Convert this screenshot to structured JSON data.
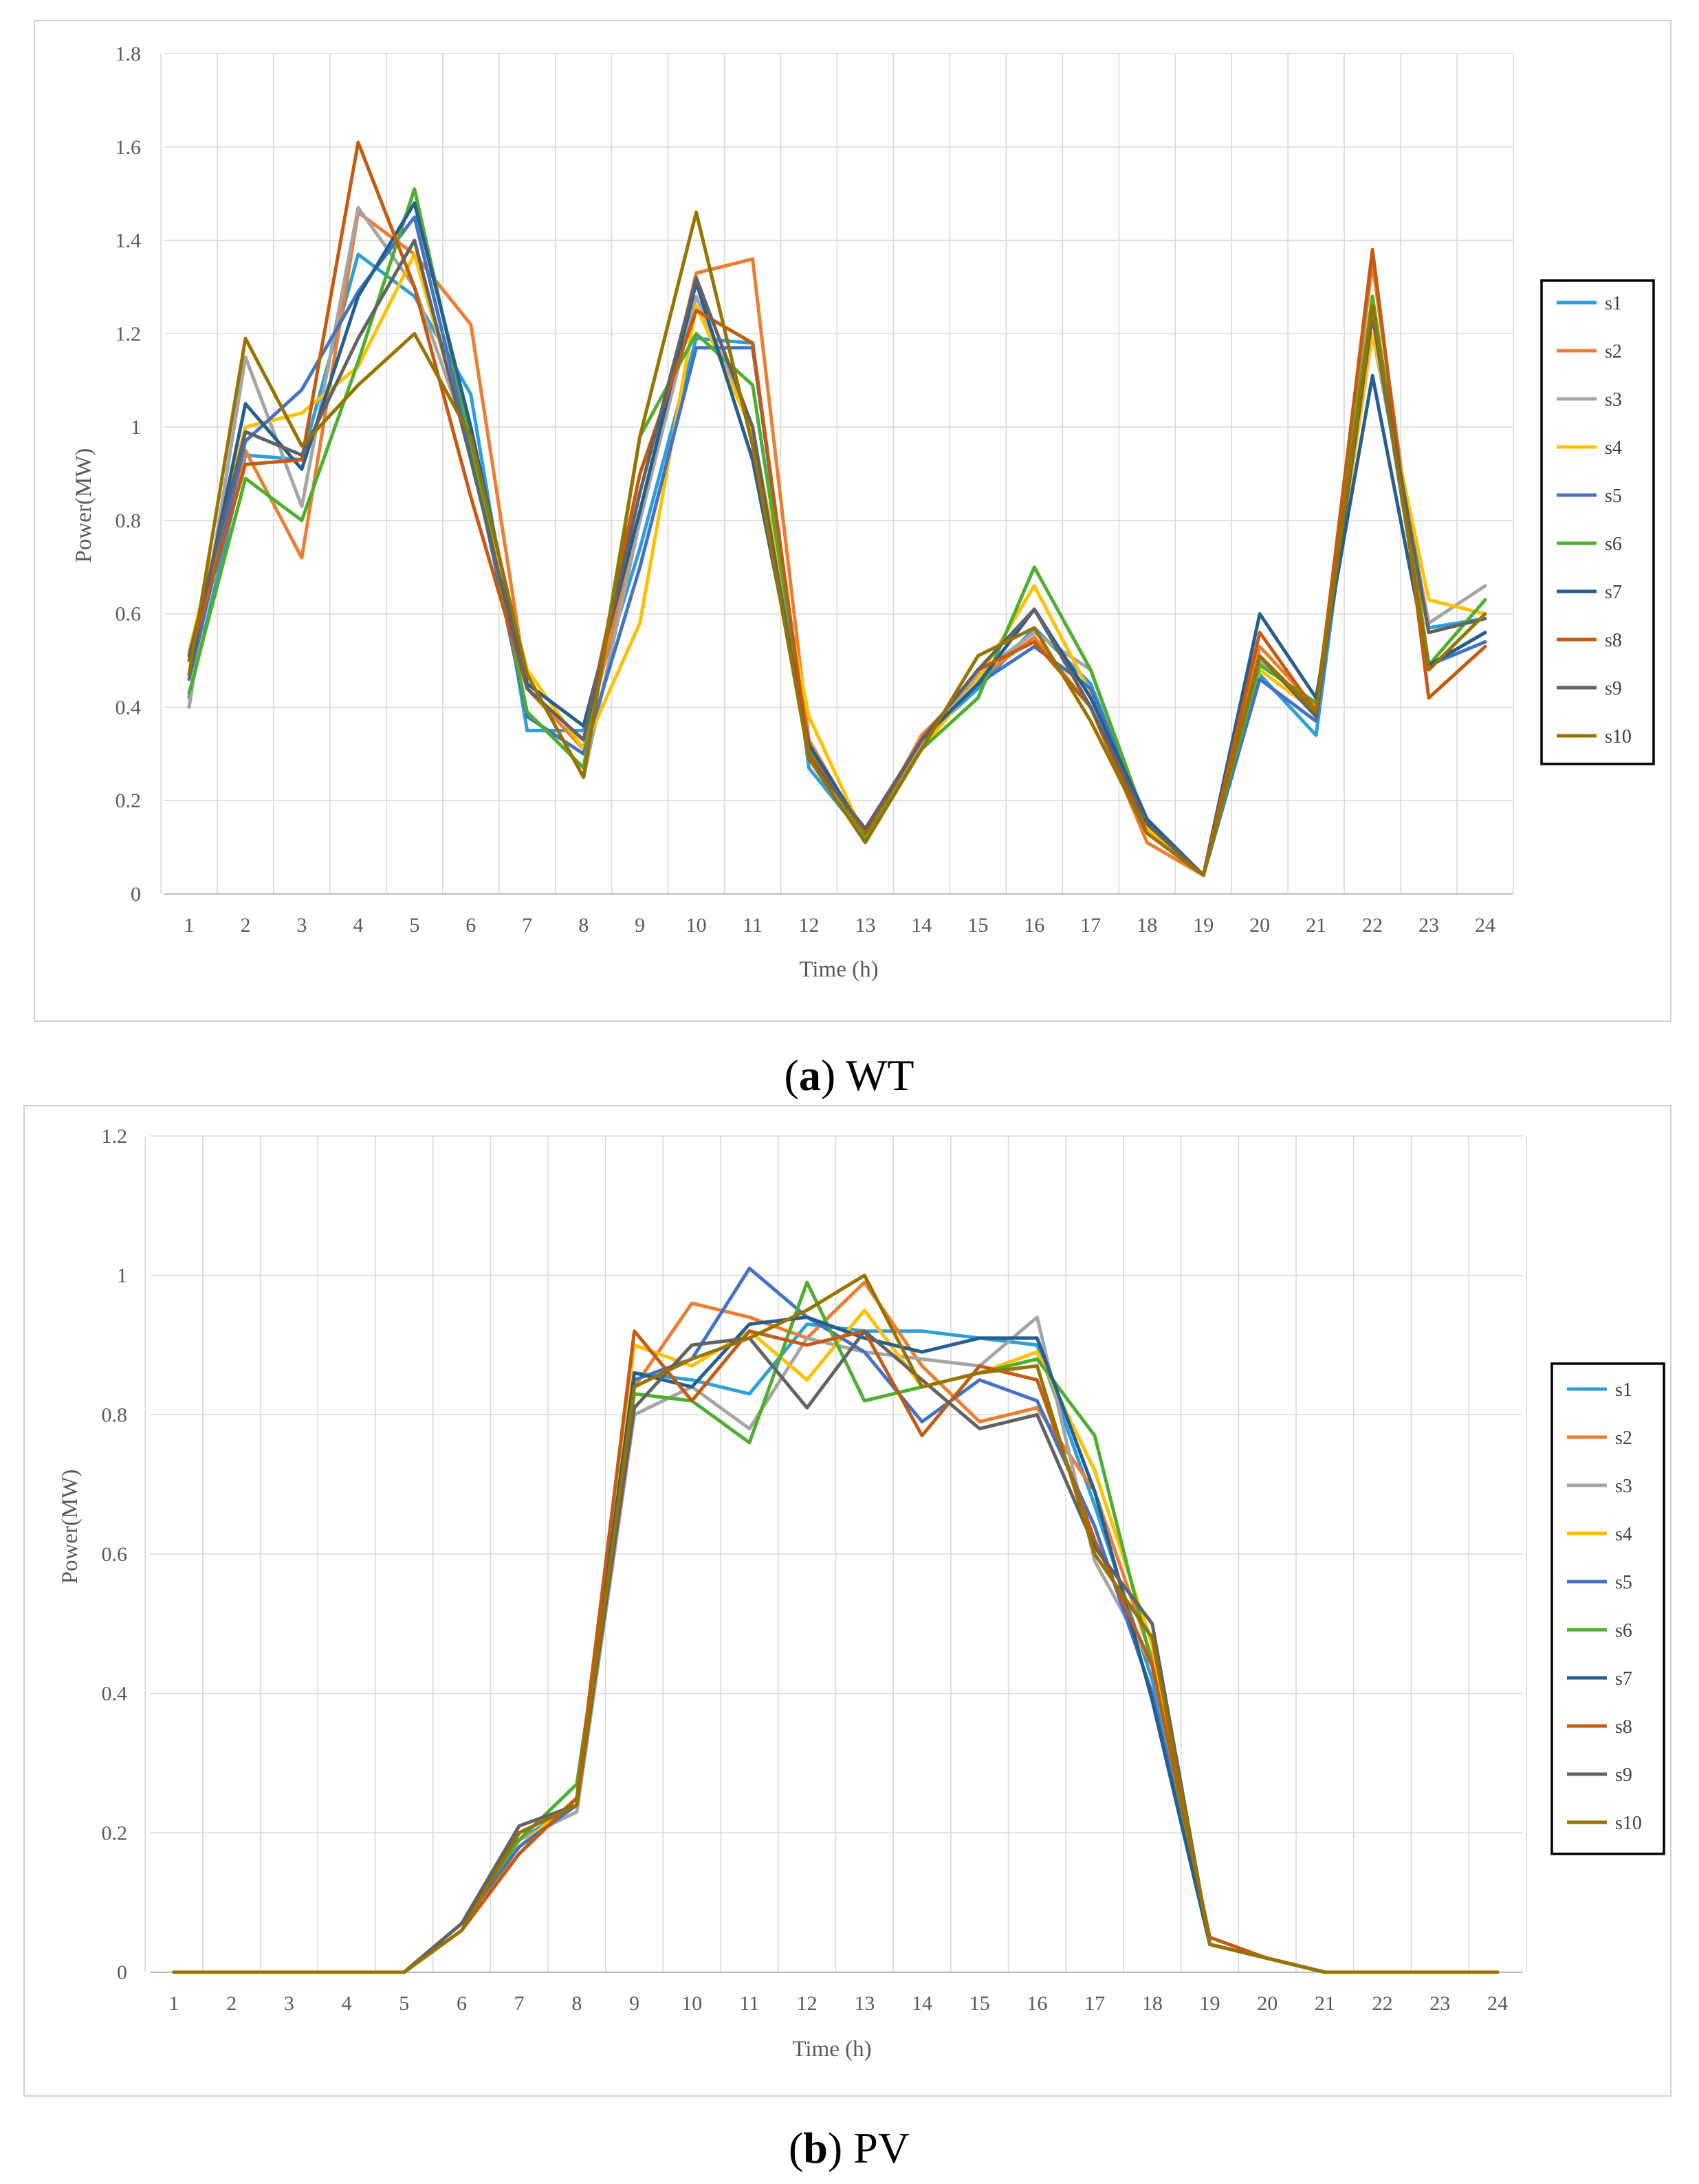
{
  "chart_data": [
    {
      "type": "line",
      "panel": "a",
      "caption_label": "a",
      "caption_text": "WT",
      "title": "",
      "xlabel": "Time (h)",
      "ylabel": "Power(MW)",
      "ylim": [
        0,
        1.8
      ],
      "yticks": [
        "0",
        "0.2",
        "0.4",
        "0.6",
        "0.8",
        "1",
        "1.2",
        "1.4",
        "1.6",
        "1.8"
      ],
      "categories": [
        "1",
        "2",
        "3",
        "4",
        "5",
        "6",
        "7",
        "8",
        "9",
        "10",
        "11",
        "12",
        "13",
        "14",
        "15",
        "16",
        "17",
        "18",
        "19",
        "20",
        "21",
        "22",
        "23",
        "24"
      ],
      "legend_position": "right",
      "grid": true,
      "series": [
        {
          "name": "s1",
          "color": "#2e9fd8",
          "values": [
            0.42,
            0.94,
            0.93,
            1.37,
            1.28,
            1.07,
            0.35,
            0.35,
            0.74,
            1.19,
            1.18,
            0.27,
            0.12,
            0.33,
            0.44,
            0.57,
            0.45,
            0.15,
            0.04,
            0.47,
            0.34,
            1.26,
            0.57,
            0.59
          ]
        },
        {
          "name": "s2",
          "color": "#ed7d31",
          "values": [
            0.5,
            0.95,
            0.72,
            1.46,
            1.37,
            1.22,
            0.44,
            0.31,
            0.81,
            1.33,
            1.36,
            0.33,
            0.12,
            0.34,
            0.46,
            0.55,
            0.4,
            0.11,
            0.04,
            0.53,
            0.4,
            1.35,
            0.49,
            0.56
          ]
        },
        {
          "name": "s3",
          "color": "#a5a5a5",
          "values": [
            0.4,
            1.15,
            0.83,
            1.47,
            1.3,
            0.96,
            0.47,
            0.25,
            0.8,
            1.28,
            1.0,
            0.31,
            0.13,
            0.32,
            0.47,
            0.56,
            0.48,
            0.14,
            0.04,
            0.5,
            0.39,
            1.2,
            0.58,
            0.66
          ]
        },
        {
          "name": "s4",
          "color": "#ffc000",
          "values": [
            0.52,
            1.0,
            1.03,
            1.13,
            1.37,
            0.95,
            0.48,
            0.31,
            0.58,
            1.26,
            0.99,
            0.38,
            0.12,
            0.31,
            0.46,
            0.66,
            0.43,
            0.14,
            0.04,
            0.48,
            0.39,
            1.2,
            0.63,
            0.6
          ]
        },
        {
          "name": "s5",
          "color": "#4472c4",
          "values": [
            0.46,
            0.97,
            1.08,
            1.29,
            1.45,
            0.95,
            0.38,
            0.3,
            0.7,
            1.17,
            1.17,
            0.3,
            0.13,
            0.33,
            0.45,
            0.53,
            0.44,
            0.16,
            0.04,
            0.46,
            0.37,
            1.24,
            0.49,
            0.54
          ]
        },
        {
          "name": "s6",
          "color": "#4daf30",
          "values": [
            0.43,
            0.89,
            0.8,
            1.14,
            1.51,
            0.97,
            0.39,
            0.27,
            0.98,
            1.2,
            1.09,
            0.31,
            0.12,
            0.31,
            0.42,
            0.7,
            0.48,
            0.15,
            0.04,
            0.49,
            0.41,
            1.28,
            0.49,
            0.63
          ]
        },
        {
          "name": "s7",
          "color": "#255e91",
          "values": [
            0.47,
            1.05,
            0.91,
            1.28,
            1.48,
            1.0,
            0.45,
            0.36,
            0.82,
            1.31,
            0.93,
            0.32,
            0.13,
            0.33,
            0.45,
            0.61,
            0.42,
            0.16,
            0.04,
            0.6,
            0.42,
            1.11,
            0.49,
            0.56
          ]
        },
        {
          "name": "s8",
          "color": "#c55a11",
          "values": [
            0.5,
            0.92,
            0.93,
            1.61,
            1.3,
            0.85,
            0.44,
            0.33,
            0.9,
            1.25,
            1.18,
            0.3,
            0.13,
            0.33,
            0.48,
            0.54,
            0.4,
            0.13,
            0.04,
            0.56,
            0.39,
            1.38,
            0.42,
            0.53
          ]
        },
        {
          "name": "s9",
          "color": "#636363",
          "values": [
            0.51,
            0.99,
            0.94,
            1.19,
            1.4,
            0.93,
            0.44,
            0.33,
            0.86,
            1.32,
            1.0,
            0.29,
            0.14,
            0.33,
            0.48,
            0.61,
            0.4,
            0.15,
            0.04,
            0.51,
            0.38,
            1.24,
            0.56,
            0.59
          ]
        },
        {
          "name": "s10",
          "color": "#997300",
          "values": [
            0.47,
            1.19,
            0.96,
            1.09,
            1.2,
            0.98,
            0.47,
            0.25,
            0.98,
            1.46,
            0.96,
            0.29,
            0.11,
            0.31,
            0.51,
            0.57,
            0.37,
            0.13,
            0.04,
            0.51,
            0.39,
            1.26,
            0.48,
            0.6
          ]
        }
      ]
    },
    {
      "type": "line",
      "panel": "b",
      "caption_label": "b",
      "caption_text": "PV",
      "title": "",
      "xlabel": "Time (h)",
      "ylabel": "Power(MW)",
      "ylim": [
        0,
        1.2
      ],
      "yticks": [
        "0",
        "0.2",
        "0.4",
        "0.6",
        "0.8",
        "1",
        "1.2"
      ],
      "categories": [
        "1",
        "2",
        "3",
        "4",
        "5",
        "6",
        "7",
        "8",
        "9",
        "10",
        "11",
        "12",
        "13",
        "14",
        "15",
        "16",
        "17",
        "18",
        "19",
        "20",
        "21",
        "22",
        "23",
        "24"
      ],
      "legend_position": "right",
      "grid": true,
      "series": [
        {
          "name": "s1",
          "color": "#2e9fd8",
          "values": [
            0,
            0,
            0,
            0,
            0,
            0.07,
            0.19,
            0.24,
            0.86,
            0.85,
            0.83,
            0.93,
            0.92,
            0.92,
            0.91,
            0.9,
            0.67,
            0.42,
            0.04,
            0.02,
            0,
            0,
            0,
            0
          ]
        },
        {
          "name": "s2",
          "color": "#ed7d31",
          "values": [
            0,
            0,
            0,
            0,
            0,
            0.07,
            0.17,
            0.25,
            0.84,
            0.96,
            0.94,
            0.91,
            0.99,
            0.87,
            0.79,
            0.81,
            0.69,
            0.45,
            0.04,
            0.02,
            0,
            0,
            0,
            0
          ]
        },
        {
          "name": "s3",
          "color": "#a5a5a5",
          "values": [
            0,
            0,
            0,
            0,
            0,
            0.07,
            0.19,
            0.23,
            0.8,
            0.84,
            0.78,
            0.91,
            0.89,
            0.88,
            0.87,
            0.94,
            0.59,
            0.44,
            0.04,
            0.02,
            0,
            0,
            0,
            0
          ]
        },
        {
          "name": "s4",
          "color": "#ffc000",
          "values": [
            0,
            0,
            0,
            0,
            0,
            0.07,
            0.18,
            0.25,
            0.9,
            0.87,
            0.92,
            0.85,
            0.95,
            0.84,
            0.86,
            0.89,
            0.72,
            0.47,
            0.04,
            0.02,
            0,
            0,
            0,
            0
          ]
        },
        {
          "name": "s5",
          "color": "#4472c4",
          "values": [
            0,
            0,
            0,
            0,
            0,
            0.07,
            0.18,
            0.24,
            0.85,
            0.88,
            1.01,
            0.94,
            0.89,
            0.79,
            0.85,
            0.82,
            0.64,
            0.4,
            0.04,
            0.02,
            0,
            0,
            0,
            0
          ]
        },
        {
          "name": "s6",
          "color": "#4daf30",
          "values": [
            0,
            0,
            0,
            0,
            0,
            0.07,
            0.19,
            0.27,
            0.83,
            0.82,
            0.76,
            0.99,
            0.82,
            0.84,
            0.86,
            0.88,
            0.77,
            0.44,
            0.04,
            0.02,
            0,
            0,
            0,
            0
          ]
        },
        {
          "name": "s7",
          "color": "#255e91",
          "values": [
            0,
            0,
            0,
            0,
            0,
            0.07,
            0.2,
            0.24,
            0.86,
            0.84,
            0.93,
            0.94,
            0.91,
            0.89,
            0.91,
            0.91,
            0.69,
            0.39,
            0.04,
            0.02,
            0,
            0,
            0,
            0
          ]
        },
        {
          "name": "s8",
          "color": "#c55a11",
          "values": [
            0,
            0,
            0,
            0,
            0,
            0.06,
            0.17,
            0.25,
            0.92,
            0.82,
            0.92,
            0.9,
            0.92,
            0.77,
            0.87,
            0.85,
            0.62,
            0.44,
            0.05,
            0.02,
            0,
            0,
            0,
            0
          ]
        },
        {
          "name": "s9",
          "color": "#636363",
          "values": [
            0,
            0,
            0,
            0,
            0,
            0.07,
            0.21,
            0.24,
            0.81,
            0.9,
            0.91,
            0.81,
            0.92,
            0.85,
            0.78,
            0.8,
            0.61,
            0.5,
            0.04,
            0.02,
            0,
            0,
            0,
            0
          ]
        },
        {
          "name": "s10",
          "color": "#997300",
          "values": [
            0,
            0,
            0,
            0,
            0,
            0.06,
            0.2,
            0.24,
            0.84,
            0.88,
            0.91,
            0.95,
            1.0,
            0.84,
            0.86,
            0.87,
            0.6,
            0.48,
            0.04,
            0.02,
            0,
            0,
            0,
            0
          ]
        }
      ]
    }
  ]
}
